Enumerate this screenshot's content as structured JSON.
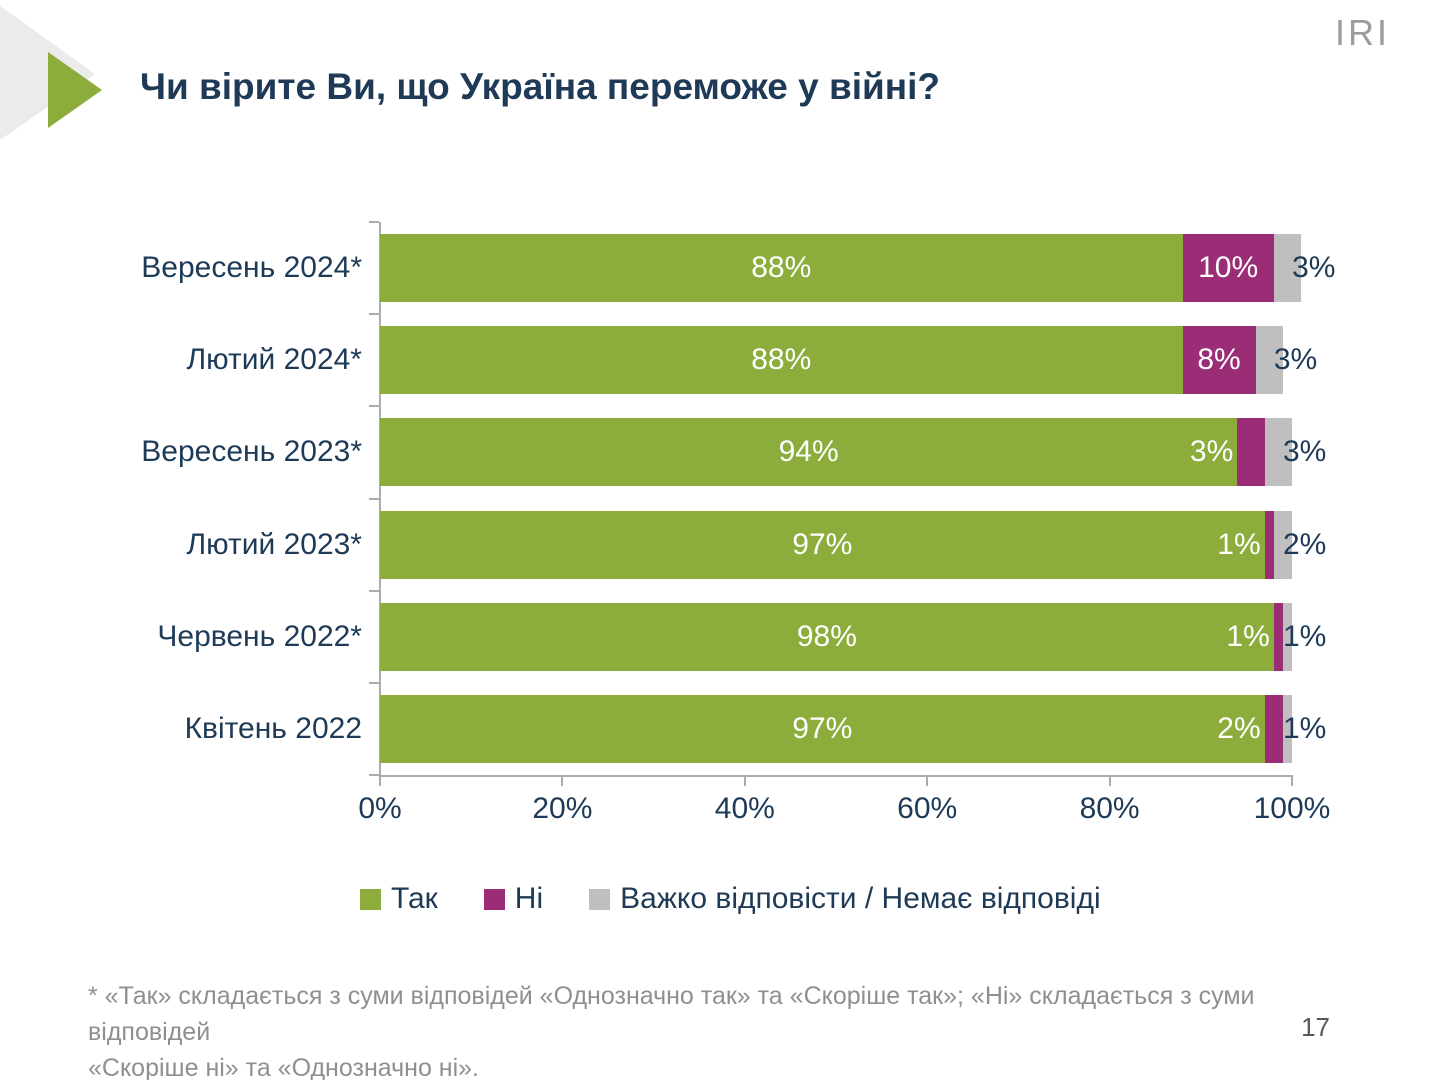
{
  "header": {
    "logo": "IRI",
    "title": "Чи вірите Ви, що Україна переможе у війні?"
  },
  "colors": {
    "yes_green": "#8CAD3B",
    "no_purple": "#9B2D76",
    "dk_gray": "#BFBFBF",
    "navy_text": "#1E3A56",
    "axis_gray": "#ABABAB",
    "footnote_gray": "#8F8F8F",
    "logo_gray": "#9C9C9C",
    "deco_gray": "#EBEBEB"
  },
  "chart_data": {
    "type": "bar",
    "orientation": "horizontal",
    "stacked": true,
    "categories": [
      "Вересень 2024*",
      "Лютий 2024*",
      "Вересень 2023*",
      "Лютий 2023*",
      "Червень 2022*",
      "Квітень 2022"
    ],
    "series": [
      {
        "name": "Так",
        "color": "#8CAD3B",
        "values": [
          88,
          88,
          94,
          97,
          98,
          97
        ]
      },
      {
        "name": "Ні",
        "color": "#9B2D76",
        "values": [
          10,
          8,
          3,
          1,
          1,
          2
        ]
      },
      {
        "name": "Важко відповісти / Немає відповіді",
        "color": "#BFBFBF",
        "values": [
          3,
          3,
          3,
          2,
          1,
          1
        ]
      }
    ],
    "value_suffix": "%",
    "x_ticks": [
      "0%",
      "20%",
      "40%",
      "60%",
      "80%",
      "100%"
    ],
    "xlim": [
      0,
      100
    ],
    "grid": false,
    "legend_position": "bottom"
  },
  "legend": {
    "items": [
      {
        "label": "Так",
        "color": "#8CAD3B"
      },
      {
        "label": "Ні",
        "color": "#9B2D76"
      },
      {
        "label": "Важко відповісти / Немає відповіді",
        "color": "#BFBFBF"
      }
    ]
  },
  "footnote": {
    "line1": "* «Так» складається з суми відповідей «Однозначно так» та «Скоріше так»; «Ні» складається з суми відповідей",
    "line2": "«Скоріше ні» та «Однозначно ні»."
  },
  "footer": {
    "page_number": "17"
  }
}
